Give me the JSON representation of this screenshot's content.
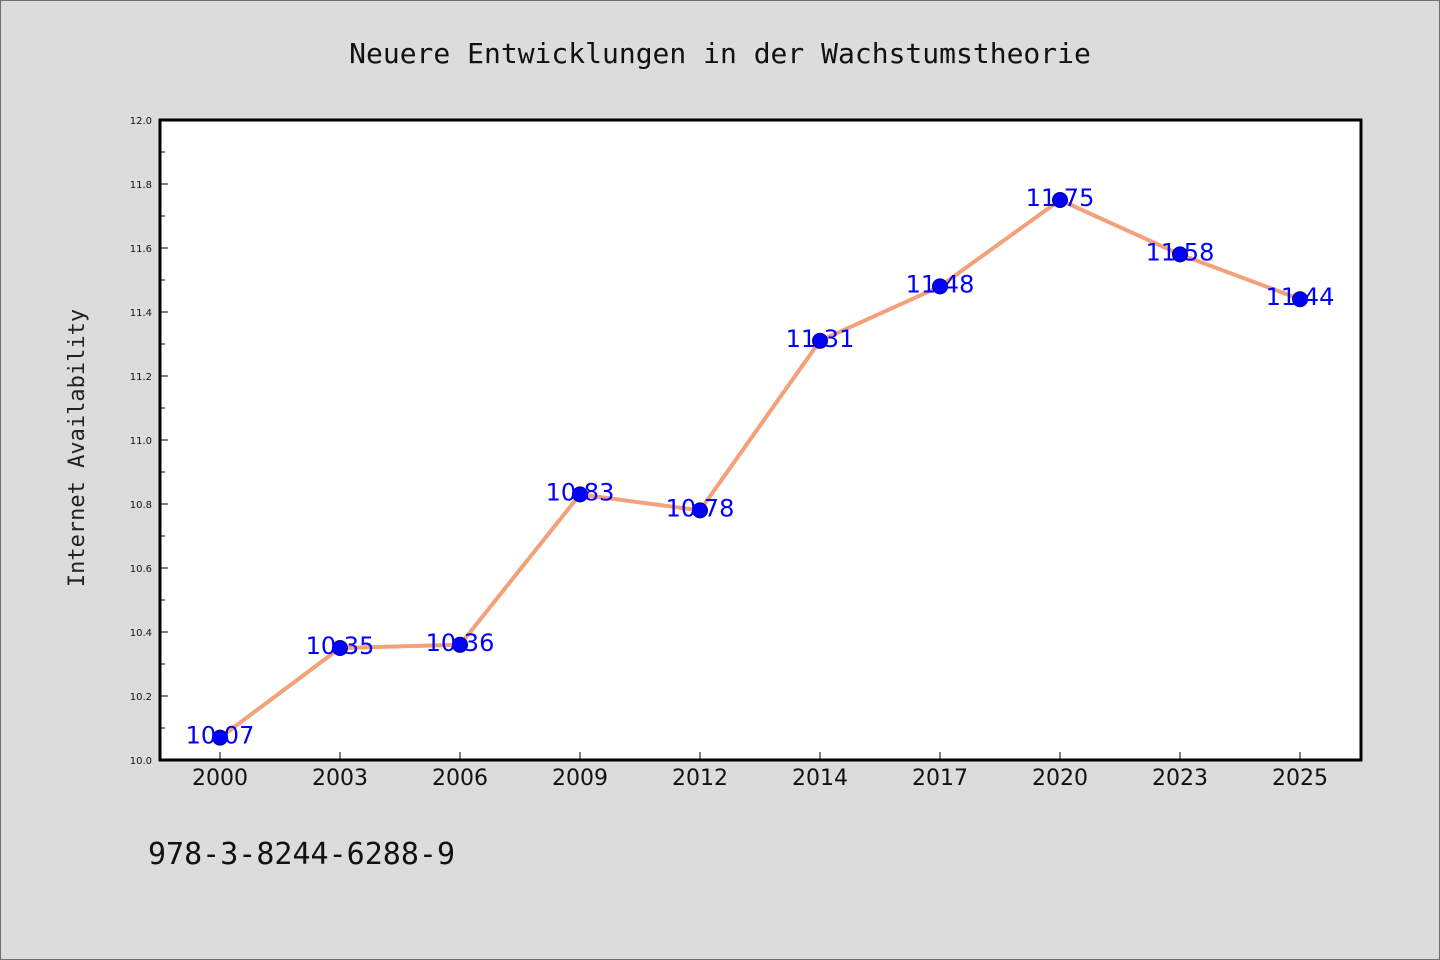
{
  "chart_data": {
    "type": "line",
    "title": "Neuere Entwicklungen in der Wachstumstheorie",
    "xlabel": "",
    "ylabel": "Internet Availability",
    "categories": [
      "2000",
      "2003",
      "2006",
      "2009",
      "2012",
      "2014",
      "2017",
      "2020",
      "2023",
      "2025"
    ],
    "series": [
      {
        "values": [
          10.07,
          10.35,
          10.36,
          10.83,
          10.78,
          11.31,
          11.48,
          11.75,
          11.58,
          11.44
        ],
        "data_labels": [
          "10.07",
          "10.35",
          "10.36",
          "10.83",
          "10.78",
          "11.31",
          "11.48",
          "11.75",
          "11.58",
          "11.44"
        ],
        "line_color": "#f4a07a",
        "marker_color": "#0000ff"
      }
    ],
    "ylim": [
      10.0,
      12.0
    ],
    "yticks": [
      "10.0",
      "10.2",
      "10.4",
      "10.6",
      "10.8",
      "11.0",
      "11.2",
      "11.4",
      "11.6",
      "11.8",
      "12.0"
    ],
    "grid": false,
    "legend": "none",
    "data_label_color": "#0000ff"
  },
  "footer": {
    "isbn": "978-3-8244-6288-9"
  }
}
